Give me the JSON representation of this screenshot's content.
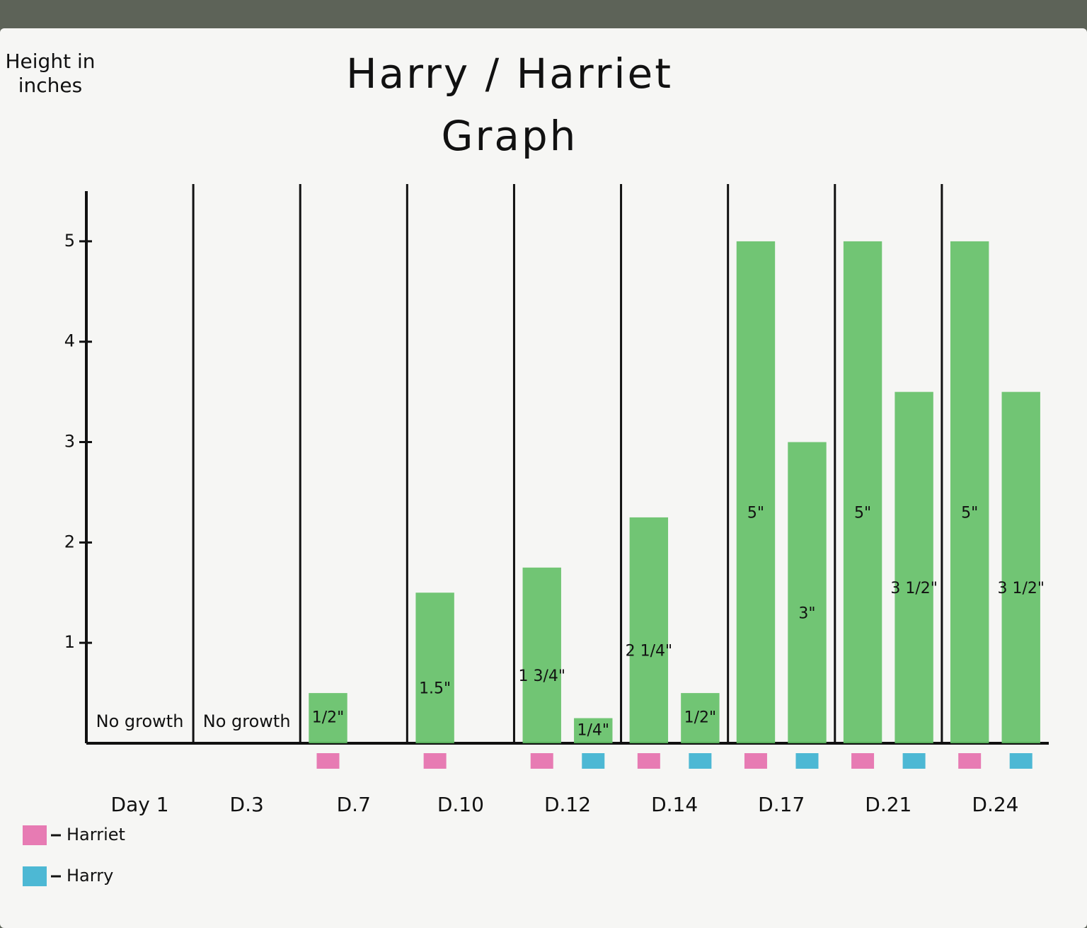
{
  "chart_data": {
    "type": "bar",
    "title": "Harry / Harriet Graph",
    "y_label": "Height in inches",
    "categories": [
      "Day 1",
      "D.3",
      "D.7",
      "D.10",
      "D.12",
      "D.14",
      "D.17",
      "D.21",
      "D.24"
    ],
    "series": [
      {
        "name": "Harriet",
        "color": "#e77bb3",
        "values": [
          null,
          null,
          0.5,
          1.5,
          1.75,
          2.25,
          5,
          5,
          5
        ],
        "value_labels": [
          null,
          null,
          "1/2\"",
          "1.5\"",
          "1 3/4\"",
          "2 1/4\"",
          "5\"",
          "5\"",
          "5\""
        ]
      },
      {
        "name": "Harry",
        "color": "#4db8d4",
        "values": [
          null,
          null,
          null,
          null,
          0.25,
          0.5,
          3,
          3.5,
          3.5
        ],
        "value_labels": [
          null,
          null,
          null,
          null,
          "1/4\"",
          "1/2\"",
          "3\"",
          "3 1/2\"",
          "3 1/2\""
        ]
      }
    ],
    "annotations": [
      "No growth",
      "No growth"
    ],
    "bar_color": "#63c066",
    "ylim": [
      0,
      5.5
    ],
    "yticks": [
      1,
      2,
      3,
      4,
      5
    ],
    "legend": "bottom-left"
  }
}
